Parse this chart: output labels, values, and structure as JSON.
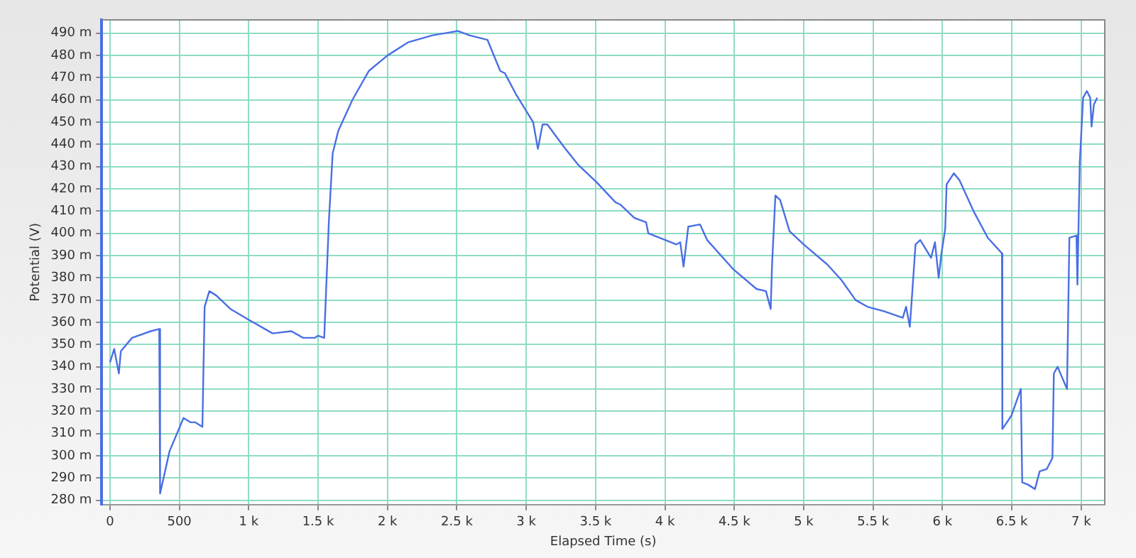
{
  "chart_data": {
    "type": "line",
    "xlabel": "Elapsed Time (s)",
    "ylabel": "Potential (V)",
    "x": [
      0,
      30,
      64,
      78,
      159,
      294,
      355,
      361,
      429,
      530,
      581,
      615,
      666,
      682,
      716,
      767,
      868,
      1003,
      1172,
      1307,
      1392,
      1476,
      1500,
      1544,
      1578,
      1605,
      1645,
      1747,
      1865,
      2000,
      2152,
      2322,
      2507,
      2593,
      2721,
      2813,
      2846,
      2931,
      3050,
      3084,
      3118,
      3152,
      3270,
      3372,
      3507,
      3643,
      3677,
      3779,
      3864,
      3880,
      4083,
      4110,
      4134,
      4168,
      4253,
      4304,
      4490,
      4660,
      4728,
      4762,
      4772,
      4796,
      4830,
      4898,
      5000,
      5170,
      5272,
      5374,
      5459,
      5578,
      5714,
      5738,
      5765,
      5782,
      5806,
      5840,
      5918,
      5946,
      5973,
      5993,
      6020,
      6030,
      6082,
      6122,
      6224,
      6327,
      6429,
      6432,
      6497,
      6565,
      6575,
      6616,
      6667,
      6701,
      6752,
      6793,
      6803,
      6830,
      6898,
      6915,
      6966,
      6973,
      6990,
      7014,
      7041,
      7065,
      7075,
      7092,
      7116
    ],
    "series": [
      {
        "color": "#4a6fe3",
        "values": [
          342,
          348,
          337,
          347,
          353,
          356,
          357,
          283,
          302,
          317,
          315,
          315,
          313,
          367,
          374,
          372,
          366,
          361,
          355,
          356,
          353,
          353,
          354,
          353,
          406,
          436,
          446,
          460,
          473,
          480,
          486,
          489,
          491,
          489,
          487,
          473,
          472,
          462,
          450,
          438,
          449,
          449,
          439,
          431,
          423,
          414,
          413,
          407,
          405,
          400,
          395,
          396,
          385,
          403,
          404,
          397,
          384,
          375,
          374,
          366,
          386,
          417,
          415,
          401,
          395,
          386,
          379,
          370,
          367,
          365,
          362,
          367,
          358,
          373,
          395,
          397,
          389,
          396,
          380,
          391,
          402,
          422,
          427,
          424,
          410,
          398,
          391,
          312,
          318,
          330,
          288,
          287,
          285,
          293,
          294,
          299,
          337,
          340,
          330,
          398,
          399,
          377,
          432,
          461,
          464,
          461,
          448,
          458,
          461
        ]
      }
    ],
    "xlim": [
      -60,
      7170
    ],
    "xticks": [
      0,
      500,
      {
        "value": 1000,
        "label": "1 k"
      },
      {
        "value": 1500,
        "label": "1.5 k"
      },
      {
        "value": 2000,
        "label": "2 k"
      },
      {
        "value": 2500,
        "label": "2.5 k"
      },
      {
        "value": 3000,
        "label": "3 k"
      },
      {
        "value": 3500,
        "label": "3.5 k"
      },
      {
        "value": 4000,
        "label": "4 k"
      },
      {
        "value": 4500,
        "label": "4.5 k"
      },
      {
        "value": 5000,
        "label": "5 k"
      },
      {
        "value": 5500,
        "label": "5.5 k"
      },
      {
        "value": 6000,
        "label": "6 k"
      },
      {
        "value": 6500,
        "label": "6.5 k"
      },
      {
        "value": 7000,
        "label": "7 k"
      }
    ],
    "ylim": [
      278,
      496
    ],
    "yticks": [
      {
        "value": 280,
        "label": "280 m"
      },
      {
        "value": 290,
        "label": "290 m"
      },
      {
        "value": 300,
        "label": "300 m"
      },
      {
        "value": 310,
        "label": "310 m"
      },
      {
        "value": 320,
        "label": "320 m"
      },
      {
        "value": 330,
        "label": "330 m"
      },
      {
        "value": 340,
        "label": "340 m"
      },
      {
        "value": 350,
        "label": "350 m"
      },
      {
        "value": 360,
        "label": "360 m"
      },
      {
        "value": 370,
        "label": "370 m"
      },
      {
        "value": 380,
        "label": "380 m"
      },
      {
        "value": 390,
        "label": "390 m"
      },
      {
        "value": 400,
        "label": "400 m"
      },
      {
        "value": 410,
        "label": "410 m"
      },
      {
        "value": 420,
        "label": "420 m"
      },
      {
        "value": 430,
        "label": "430 m"
      },
      {
        "value": 440,
        "label": "440 m"
      },
      {
        "value": 450,
        "label": "450 m"
      },
      {
        "value": 460,
        "label": "460 m"
      },
      {
        "value": 470,
        "label": "470 m"
      },
      {
        "value": 480,
        "label": "480 m"
      },
      {
        "value": 490,
        "label": "490 m"
      }
    ],
    "grid": true,
    "marker": "none",
    "line_style": "solid",
    "legend": false
  }
}
